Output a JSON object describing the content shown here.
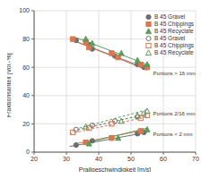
{
  "chart_data": {
    "type": "scatter",
    "x_label": "Prallgeschwindigkeit [m/s]",
    "y_label": "Fraktionsanteil [Vol.-%]",
    "xlim": [
      20,
      70
    ],
    "xticks": [
      20,
      30,
      40,
      50,
      60,
      70
    ],
    "ylim": [
      0,
      100
    ],
    "yticks": [
      0,
      20,
      40,
      60,
      80,
      100
    ],
    "grid": true,
    "legend": "upper right",
    "series": [
      {
        "name": "B 45 Gravel",
        "color": "#6e6e6e",
        "marker": "circle",
        "x": [
          33,
          37,
          38,
          45,
          52,
          54,
          33,
          38,
          44,
          52,
          54
        ],
        "values": [
          79,
          76,
          73,
          68,
          62,
          60,
          5,
          8,
          10,
          13,
          14
        ],
        "trend_lines": [
          {
            "x": [
              32,
              55
            ],
            "values": [
              79,
              59
            ]
          },
          {
            "x": [
              31,
              55
            ],
            "values": [
              4,
              14
            ]
          }
        ]
      },
      {
        "name": "B 45 Chippings",
        "color": "#d9774f",
        "marker": "square",
        "x": [
          32,
          36,
          37,
          44,
          46,
          53,
          55,
          36,
          44,
          53
        ],
        "values": [
          80,
          78,
          74,
          70,
          67,
          62,
          60,
          7,
          10,
          15
        ],
        "trend_lines": [
          {
            "x": [
              31,
              55
            ],
            "values": [
              80,
              58
            ]
          },
          {
            "x": [
              33,
              55
            ],
            "values": [
              6,
              16
            ]
          }
        ]
      },
      {
        "name": "B 45 Recyclate",
        "color": "#5b9e5b",
        "marker": "triangle",
        "x": [
          36,
          38,
          47,
          52,
          55,
          37,
          46,
          55
        ],
        "values": [
          80,
          77,
          70,
          65,
          62,
          6,
          10,
          16
        ],
        "trend_lines": [
          {
            "x": [
              33,
              55
            ],
            "values": [
              81,
              62
            ]
          },
          {
            "x": [
              35,
              55
            ],
            "values": [
              6,
              17
            ]
          }
        ]
      },
      {
        "name": "B 45 Gravel",
        "color": "#6e6e6e",
        "marker": "circle_open",
        "line_style": "dashed",
        "x": [
          33,
          38,
          45,
          52,
          54
        ],
        "values": [
          16,
          19,
          22,
          25,
          27
        ],
        "trend_lines": [
          {
            "x": [
              32,
              55
            ],
            "values": [
              15,
              27
            ]
          }
        ]
      },
      {
        "name": "B 45 Chippings",
        "color": "#d9774f",
        "marker": "square_open",
        "line_style": "dashed",
        "x": [
          32,
          37,
          44,
          53,
          55
        ],
        "values": [
          14,
          17,
          20,
          24,
          26
        ],
        "trend_lines": [
          {
            "x": [
              31,
              55
            ],
            "values": [
              13,
              25
            ]
          }
        ]
      },
      {
        "name": "B 45 Recyclate",
        "color": "#5b9e5b",
        "marker": "triangle_open",
        "line_style": "dashed",
        "x": [
          36,
          47,
          52,
          55
        ],
        "values": [
          18,
          22,
          26,
          29
        ],
        "trend_lines": [
          {
            "x": [
              34,
              55
            ],
            "values": [
              17,
              30
            ]
          }
        ]
      }
    ],
    "annotations": [
      {
        "text": "Portions > 16 mm",
        "x": 56,
        "y": 56
      },
      {
        "text": "Portions 2/16 mm",
        "x": 56,
        "y": 27
      },
      {
        "text": "Portions < 2 mm",
        "x": 56,
        "y": 13
      }
    ]
  }
}
